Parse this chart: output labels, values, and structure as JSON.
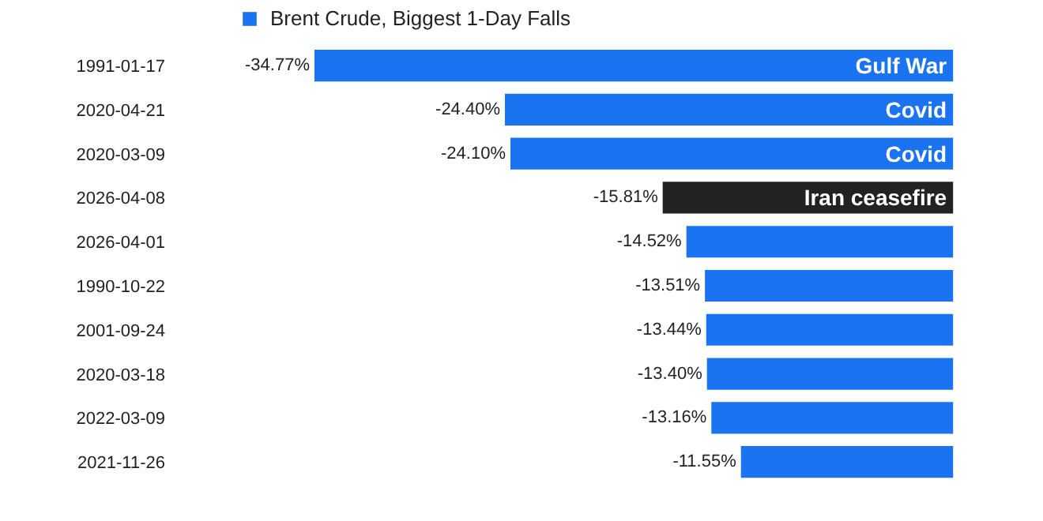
{
  "chart_data": {
    "type": "bar",
    "orientation": "horizontal",
    "categories": [
      "1991-01-17",
      "2020-04-21",
      "2020-03-09",
      "2026-04-08",
      "2026-04-01",
      "1990-10-22",
      "2001-09-24",
      "2020-03-18",
      "2022-03-09",
      "2021-11-26"
    ],
    "series": [
      {
        "name": "Brent Crude, Biggest 1-Day Falls",
        "color": "#1a73f0",
        "colors": [
          null,
          null,
          null,
          "#222222",
          null,
          null,
          null,
          null,
          null,
          null
        ],
        "values": [
          -34.77,
          -24.4,
          -24.1,
          -15.81,
          -14.52,
          -13.51,
          -13.44,
          -13.4,
          -13.16,
          -11.55
        ],
        "value_labels": [
          "-34.77%",
          "-24.40%",
          "-24.10%",
          "-15.81%",
          "-14.52%",
          "-13.51%",
          "-13.44%",
          "-13.40%",
          "-13.16%",
          "-11.55%"
        ]
      }
    ],
    "tick_labels": "y",
    "grid": false,
    "legend": "top left",
    "annotations": [
      {
        "text": "Gulf War",
        "y": "1991-01-17"
      },
      {
        "text": "Covid",
        "y": "2020-04-21"
      },
      {
        "text": "Covid",
        "y": "2020-03-09"
      },
      {
        "text": "Iran ceasefire",
        "y": "2026-04-08"
      }
    ]
  }
}
